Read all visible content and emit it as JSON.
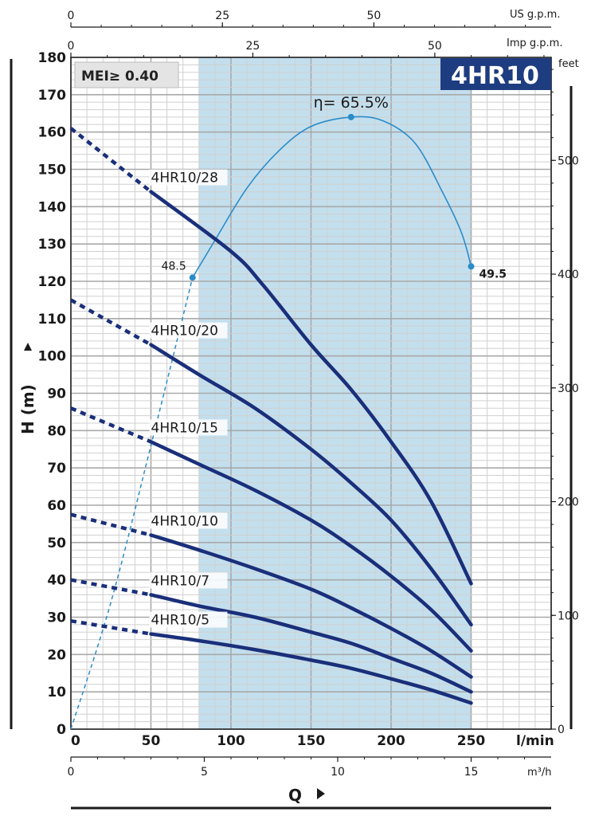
{
  "chart_data": {
    "type": "line",
    "model": "4HR10",
    "badge": "MEI≥ 0.40",
    "xlabel": "Q",
    "ylabel": "H (m)",
    "x_unit": "l/min",
    "x_m3h_unit": "m³/h",
    "right_unit": "feet",
    "top_us_unit": "US g.p.m.",
    "top_imp_unit": "Imp g.p.m.",
    "xlim": [
      0,
      300
    ],
    "ylim": [
      0,
      180
    ],
    "x_ticks": [
      "0",
      "50",
      "100",
      "150",
      "200",
      "250"
    ],
    "y_ticks": [
      "0",
      "10",
      "20",
      "30",
      "40",
      "50",
      "60",
      "70",
      "80",
      "90",
      "100",
      "110",
      "120",
      "130",
      "140",
      "150",
      "160",
      "170",
      "180"
    ],
    "m3h_ticks": [
      "0",
      "5",
      "10",
      "15"
    ],
    "feet_ticks": [
      "0",
      "100",
      "200",
      "300",
      "400",
      "500"
    ],
    "us_gpm_ticks": [
      "0",
      "25",
      "50"
    ],
    "imp_gpm_ticks": [
      "0",
      "25",
      "50"
    ],
    "recommended_range": [
      80,
      250
    ],
    "colors": {
      "curve": "#1a2f7a",
      "efficiency": "#2a8cc8",
      "band": "#c3dfee",
      "model_box": "#1e3c80"
    },
    "series": [
      {
        "name": "4HR10/28",
        "dashed": [
          [
            0,
            161
          ],
          [
            50,
            144
          ]
        ],
        "values": [
          [
            50,
            144
          ],
          [
            100,
            128
          ],
          [
            120,
            119
          ],
          [
            150,
            103
          ],
          [
            175,
            91
          ],
          [
            200,
            77
          ],
          [
            225,
            61
          ],
          [
            250,
            39
          ]
        ]
      },
      {
        "name": "4HR10/20",
        "dashed": [
          [
            0,
            115
          ],
          [
            50,
            103
          ]
        ],
        "values": [
          [
            50,
            103
          ],
          [
            80,
            95
          ],
          [
            115,
            86
          ],
          [
            150,
            75
          ],
          [
            175,
            66
          ],
          [
            200,
            56
          ],
          [
            225,
            43
          ],
          [
            250,
            28
          ]
        ]
      },
      {
        "name": "4HR10/15",
        "dashed": [
          [
            0,
            86
          ],
          [
            50,
            77
          ]
        ],
        "values": [
          [
            50,
            77
          ],
          [
            80,
            71
          ],
          [
            115,
            64
          ],
          [
            150,
            56
          ],
          [
            175,
            49
          ],
          [
            200,
            41
          ],
          [
            225,
            32
          ],
          [
            250,
            21
          ]
        ]
      },
      {
        "name": "4HR10/10",
        "dashed": [
          [
            0,
            57.5
          ],
          [
            50,
            52
          ]
        ],
        "values": [
          [
            50,
            52
          ],
          [
            80,
            48
          ],
          [
            115,
            43
          ],
          [
            150,
            37.5
          ],
          [
            175,
            32.5
          ],
          [
            200,
            27
          ],
          [
            225,
            21
          ],
          [
            250,
            14
          ]
        ]
      },
      {
        "name": "4HR10/7",
        "dashed": [
          [
            0,
            40
          ],
          [
            50,
            36
          ]
        ],
        "values": [
          [
            50,
            36
          ],
          [
            80,
            33
          ],
          [
            115,
            30
          ],
          [
            150,
            26
          ],
          [
            175,
            23
          ],
          [
            200,
            19
          ],
          [
            225,
            15
          ],
          [
            250,
            10
          ]
        ]
      },
      {
        "name": "4HR10/5",
        "dashed": [
          [
            0,
            29
          ],
          [
            50,
            25.5
          ]
        ],
        "values": [
          [
            50,
            25.5
          ],
          [
            80,
            23.7
          ],
          [
            115,
            21.3
          ],
          [
            150,
            18.5
          ],
          [
            175,
            16.3
          ],
          [
            200,
            13.5
          ],
          [
            225,
            10.5
          ],
          [
            250,
            7
          ]
        ]
      }
    ],
    "efficiency": {
      "solid": [
        [
          76,
          121
        ],
        [
          90,
          131
        ],
        [
          110,
          145
        ],
        [
          130,
          155
        ],
        [
          150,
          161.5
        ],
        [
          175,
          164
        ],
        [
          195,
          163
        ],
        [
          215,
          157
        ],
        [
          232,
          144
        ],
        [
          244,
          133
        ],
        [
          250,
          124
        ]
      ],
      "dashed": [
        [
          0,
          0
        ],
        [
          25,
          34
        ],
        [
          50,
          76
        ],
        [
          76,
          121
        ]
      ],
      "points": [
        {
          "x": 76,
          "y": 121,
          "label": "48.5"
        },
        {
          "x": 175,
          "y": 164,
          "label": "η= 65.5%"
        },
        {
          "x": 250,
          "y": 124,
          "label": "49.5"
        }
      ]
    }
  }
}
